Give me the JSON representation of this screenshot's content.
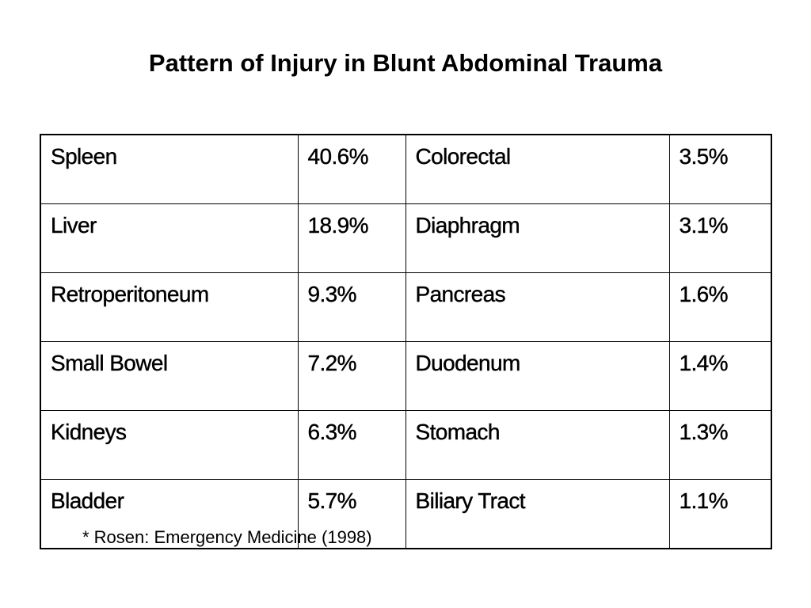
{
  "title": "Pattern of Injury in Blunt Abdominal Trauma",
  "table": {
    "rows": [
      {
        "organ_a": "Spleen",
        "pct_a": "40.6%",
        "organ_b": "Colorectal",
        "pct_b": "3.5%"
      },
      {
        "organ_a": "Liver",
        "pct_a": "18.9%",
        "organ_b": "Diaphragm",
        "pct_b": "3.1%"
      },
      {
        "organ_a": "Retroperitoneum",
        "pct_a": "9.3%",
        "organ_b": "Pancreas",
        "pct_b": "1.6%"
      },
      {
        "organ_a": "Small Bowel",
        "pct_a": "7.2%",
        "organ_b": "Duodenum",
        "pct_b": "1.4%"
      },
      {
        "organ_a": "Kidneys",
        "pct_a": "6.3%",
        "organ_b": "Stomach",
        "pct_b": "1.3%"
      },
      {
        "organ_a": "Bladder",
        "pct_a": "5.7%",
        "organ_b": "Biliary Tract",
        "pct_b": "1.1%"
      }
    ]
  },
  "citation": "* Rosen: Emergency Medicine (1998)"
}
